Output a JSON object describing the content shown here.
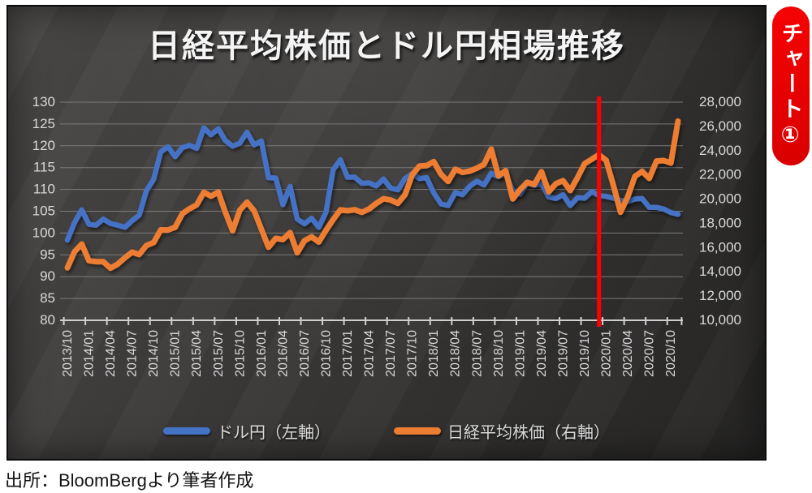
{
  "page": {
    "badge_label": "チャート①",
    "badge_color": "#e00000",
    "source_note": "出所：BloomBergより筆者作成"
  },
  "chart": {
    "title": "日経平均株価とドル円相場推移",
    "legend": [
      {
        "label": "ドル円（左軸）",
        "color": "#4472C4"
      },
      {
        "label": "日経平均株価（右軸）",
        "color": "#ED7D31"
      }
    ]
  },
  "chart_data": {
    "type": "line",
    "title": "日経平均株価とドル円相場推移",
    "x_monthly_start": "2013/10",
    "x_monthly_end": "2020/11",
    "x_tick_labels": [
      "2013/10",
      "2014/01",
      "2014/04",
      "2014/07",
      "2014/10",
      "2015/01",
      "2015/04",
      "2015/07",
      "2015/10",
      "2016/01",
      "2016/04",
      "2016/07",
      "2016/10",
      "2017/01",
      "2017/04",
      "2017/07",
      "2017/10",
      "2018/01",
      "2018/04",
      "2018/07",
      "2018/10",
      "2019/01",
      "2019/04",
      "2019/07",
      "2019/10",
      "2020/01",
      "2020/04",
      "2020/07",
      "2020/10"
    ],
    "left_axis": {
      "min": 80,
      "max": 130,
      "step": 5
    },
    "right_axis": {
      "min": 10000,
      "max": 28000,
      "step": 2000
    },
    "grid": true,
    "legend_position": "bottom",
    "annotation_vline": {
      "at": "2019/12",
      "month_index": 74,
      "color": "#ff0000"
    },
    "series": [
      {
        "name": "ドル円（左軸）",
        "axis": "left",
        "color": "#4472C4",
        "values": [
          98.4,
          102.4,
          105.3,
          102.0,
          101.8,
          103.2,
          102.2,
          101.8,
          101.3,
          102.8,
          104.1,
          109.7,
          112.3,
          118.6,
          119.8,
          117.5,
          119.6,
          120.1,
          119.4,
          124.1,
          122.5,
          123.9,
          121.2,
          119.9,
          120.6,
          123.1,
          120.2,
          121.1,
          112.7,
          112.6,
          106.5,
          110.7,
          103.2,
          102.1,
          103.4,
          101.3,
          104.8,
          114.5,
          116.8,
          112.8,
          112.8,
          111.4,
          111.5,
          110.8,
          112.4,
          110.3,
          109.9,
          112.5,
          113.6,
          112.5,
          112.7,
          109.2,
          106.7,
          106.3,
          109.3,
          108.8,
          110.7,
          111.9,
          111.0,
          113.7,
          112.9,
          113.6,
          109.7,
          108.9,
          111.4,
          110.9,
          111.4,
          108.3,
          107.9,
          108.8,
          106.3,
          108.1,
          108.0,
          109.5,
          108.6,
          108.4,
          108.0,
          107.5,
          107.2,
          107.8,
          107.9,
          105.9,
          105.9,
          105.5,
          104.7,
          104.3
        ]
      },
      {
        "name": "日経平均株価（右軸）",
        "axis": "right",
        "color": "#ED7D31",
        "values": [
          14328,
          15662,
          16291,
          14915,
          14841,
          14828,
          14304,
          14632,
          15162,
          15621,
          15425,
          16174,
          16414,
          17460,
          17451,
          17674,
          18798,
          19207,
          19520,
          20563,
          20236,
          20585,
          18890,
          17388,
          19083,
          19747,
          19034,
          17518,
          16027,
          16759,
          16666,
          17235,
          15576,
          16569,
          16887,
          16450,
          17425,
          18308,
          19114,
          19041,
          19119,
          18909,
          19197,
          19651,
          20033,
          19925,
          19646,
          20356,
          22012,
          22725,
          22765,
          23098,
          22068,
          21454,
          22468,
          22202,
          22305,
          22554,
          22865,
          24120,
          21920,
          22351,
          20015,
          20773,
          21385,
          21206,
          22259,
          20601,
          21276,
          21522,
          20704,
          21756,
          22927,
          23294,
          23657,
          23205,
          21143,
          18917,
          20194,
          21878,
          22288,
          21710,
          23140,
          23185,
          22977,
          26434
        ]
      }
    ]
  }
}
